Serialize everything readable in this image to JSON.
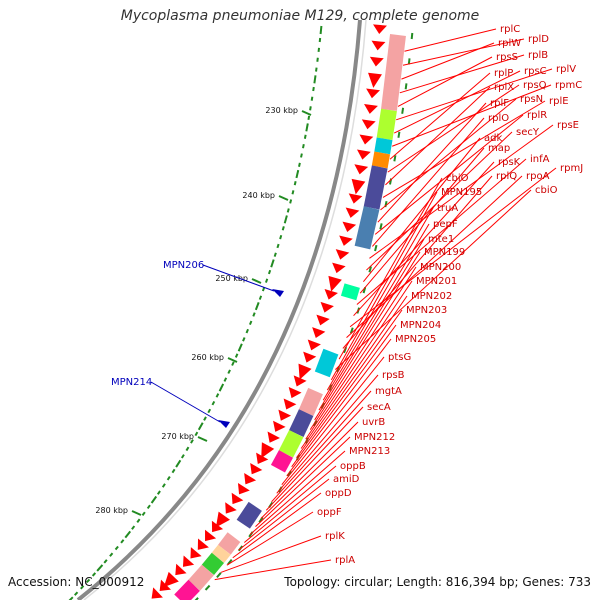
{
  "title": "Mycoplasma pneumoniae M129, complete genome",
  "accession": "Accession: NC_000912",
  "summary": "Topology: circular; Length: 816,394 bp; Genes: 733",
  "colors": {
    "gene_red": "#ff0000",
    "label_red": "#cc0000",
    "backbone": "#888888",
    "gc_green": "#228b22",
    "highlight_blue": "#0000bb",
    "cog_pink": "#f4a3a3",
    "cog_yellowgreen": "#adff2f",
    "cog_cyan": "#00c8d8",
    "cog_orange": "#ff8c00",
    "cog_navy": "#4b4b9a",
    "cog_steel": "#4a7fb0",
    "cog_spring": "#00ffa0",
    "cog_magenta": "#ff1493",
    "cog_purple": "#6a3d9a",
    "cog_green": "#33cc33",
    "cog_peach": "#ffd39b"
  },
  "kbp_ticks": [
    "230 kbp",
    "240 kbp",
    "250 kbp",
    "260 kbp",
    "270 kbp",
    "280 kbp"
  ],
  "highlighted_genes": [
    "MPN206",
    "MPN214"
  ],
  "gene_labels": [
    "rplC",
    "rplD",
    "rplW",
    "rplB",
    "rpsS",
    "rplV",
    "rpsC",
    "rpmC",
    "rplP",
    "rpsQ",
    "rplX",
    "rplE",
    "rpsN",
    "rplF",
    "rplR",
    "rplO",
    "rpsE",
    "secY",
    "adk",
    "map",
    "infA",
    "rpsK",
    "rpmJ",
    "rpoA",
    "rplQ",
    "cbiO",
    "cbiO",
    "MPN195",
    "truA",
    "pepF",
    "mte1",
    "MPN199",
    "MPN200",
    "MPN201",
    "MPN202",
    "MPN203",
    "MPN204",
    "MPN205",
    "ptsG",
    "rpsB",
    "mgtA",
    "secA",
    "uvrB",
    "MPN212",
    "MPN213",
    "oppB",
    "amiD",
    "oppD",
    "oppF",
    "rplK",
    "rplA"
  ]
}
